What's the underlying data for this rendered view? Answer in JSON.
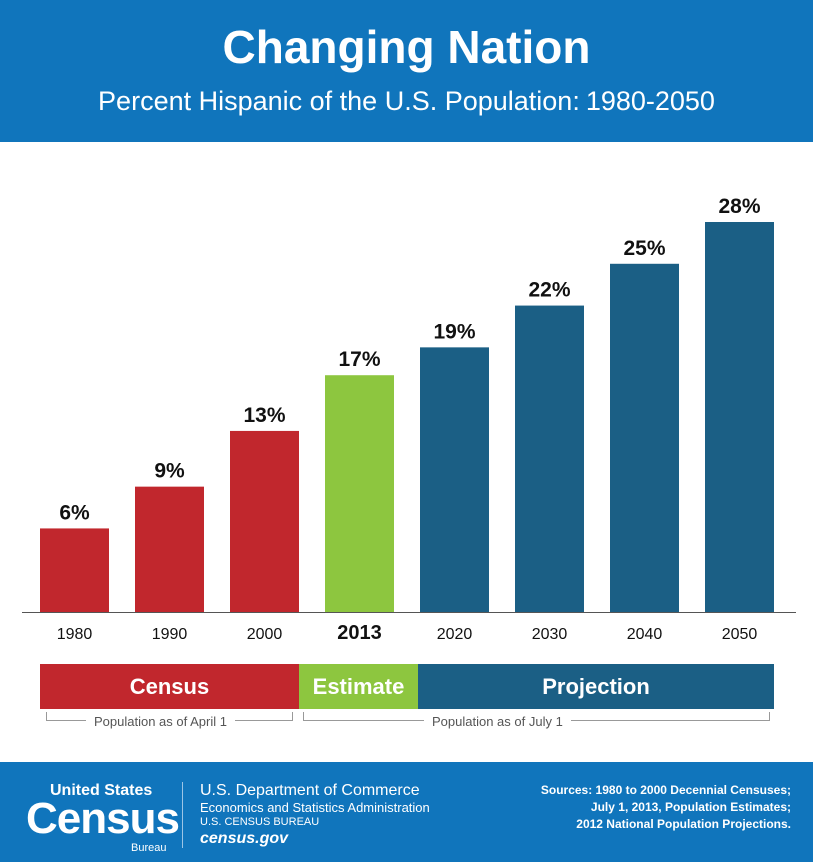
{
  "header": {
    "title": "Changing Nation",
    "subtitle": "Percent Hispanic of the U.S. Population:",
    "subtitle_years": "1980-2050"
  },
  "chart_data": {
    "type": "bar",
    "categories": [
      "1980",
      "1990",
      "2000",
      "2013",
      "2020",
      "2030",
      "2040",
      "2050"
    ],
    "values": [
      6,
      9,
      13,
      17,
      19,
      22,
      25,
      28
    ],
    "value_labels": [
      "6%",
      "9%",
      "13%",
      "17%",
      "19%",
      "22%",
      "25%",
      "28%"
    ],
    "bar_colors": [
      "#c1272d",
      "#c1272d",
      "#c1272d",
      "#8dc63f",
      "#1b5f85",
      "#1b5f85",
      "#1b5f85",
      "#1b5f85"
    ],
    "highlight_category": "2013",
    "ylim": [
      0,
      28
    ],
    "grid": false,
    "y_axis_visible": false
  },
  "bands": {
    "census": {
      "label": "Census",
      "color": "#c1272d"
    },
    "estimate": {
      "label": "Estimate",
      "color": "#8dc63f"
    },
    "projection": {
      "label": "Projection",
      "color": "#1b5f85"
    }
  },
  "brackets": {
    "april": "Population as of April 1",
    "july": "Population as of July 1"
  },
  "footer": {
    "logo_top": "United States",
    "logo_main": "Census",
    "logo_bottom": "Bureau",
    "dept": "U.S. Department of Commerce",
    "esa": "Economics and Statistics Administration",
    "bureau": "U.S. CENSUS BUREAU",
    "site": "census.gov",
    "sources": [
      "Sources: 1980 to 2000 Decennial Censuses;",
      "July 1, 2013, Population Estimates;",
      "2012 National Population Projections."
    ]
  },
  "colors": {
    "header_bg": "#1075bc",
    "census_red": "#c1272d",
    "estimate_green": "#8dc63f",
    "projection_blue": "#1b5f85"
  }
}
